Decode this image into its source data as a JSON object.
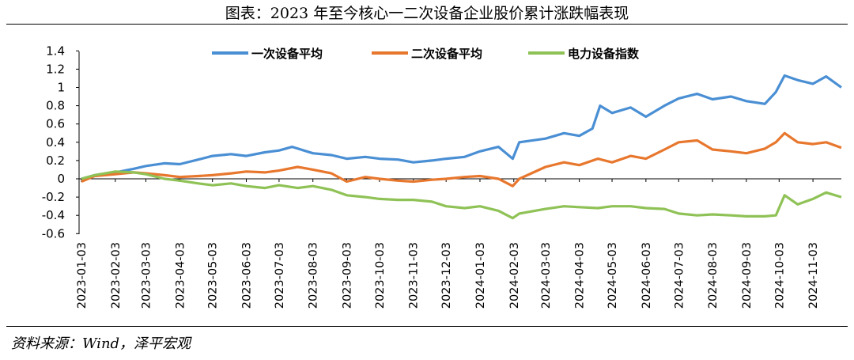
{
  "title": "图表：2023 年至今核心一二次设备企业股价累计涨跌幅表现",
  "source": "资料来源：Wind，泽平宏观",
  "chart_data": {
    "type": "line",
    "title": "图表：2023 年至今核心一二次设备企业股价累计涨跌幅表现",
    "xlabel": "",
    "ylabel": "",
    "ylim": [
      -0.6,
      1.4
    ],
    "yticks": [
      "1.4",
      "1.2",
      "1",
      "0.8",
      "0.6",
      "0.4",
      "0.2",
      "0",
      "-0.2",
      "-0.4",
      "-0.6"
    ],
    "x_range": [
      "2023-01-03",
      "2024-11-29"
    ],
    "xticks": [
      "2023-01-03",
      "2023-02-03",
      "2023-03-03",
      "2023-04-03",
      "2023-05-03",
      "2023-06-03",
      "2023-07-03",
      "2023-08-03",
      "2023-09-03",
      "2023-10-03",
      "2023-11-03",
      "2023-12-03",
      "2024-01-03",
      "2024-02-03",
      "2024-03-03",
      "2024-04-03",
      "2024-05-03",
      "2024-06-03",
      "2024-07-03",
      "2024-08-03",
      "2024-09-03",
      "2024-10-03",
      "2024-11-03"
    ],
    "legend_position": "top",
    "series": [
      {
        "name": "一次设备平均",
        "color": "#4A8FD4",
        "points": [
          [
            "2023-01-03",
            0.0
          ],
          [
            "2023-01-15",
            0.04
          ],
          [
            "2023-02-03",
            0.07
          ],
          [
            "2023-02-20",
            0.11
          ],
          [
            "2023-03-03",
            0.14
          ],
          [
            "2023-03-20",
            0.17
          ],
          [
            "2023-04-03",
            0.16
          ],
          [
            "2023-04-20",
            0.21
          ],
          [
            "2023-05-03",
            0.25
          ],
          [
            "2023-05-20",
            0.27
          ],
          [
            "2023-06-03",
            0.25
          ],
          [
            "2023-06-20",
            0.29
          ],
          [
            "2023-07-03",
            0.31
          ],
          [
            "2023-07-15",
            0.35
          ],
          [
            "2023-08-03",
            0.28
          ],
          [
            "2023-08-20",
            0.26
          ],
          [
            "2023-09-03",
            0.22
          ],
          [
            "2023-09-20",
            0.24
          ],
          [
            "2023-10-03",
            0.22
          ],
          [
            "2023-10-20",
            0.21
          ],
          [
            "2023-11-03",
            0.18
          ],
          [
            "2023-11-20",
            0.2
          ],
          [
            "2023-12-03",
            0.22
          ],
          [
            "2023-12-20",
            0.24
          ],
          [
            "2024-01-03",
            0.3
          ],
          [
            "2024-01-20",
            0.35
          ],
          [
            "2024-02-02",
            0.22
          ],
          [
            "2024-02-08",
            0.4
          ],
          [
            "2024-03-03",
            0.44
          ],
          [
            "2024-03-20",
            0.5
          ],
          [
            "2024-04-03",
            0.47
          ],
          [
            "2024-04-15",
            0.55
          ],
          [
            "2024-04-22",
            0.8
          ],
          [
            "2024-05-03",
            0.72
          ],
          [
            "2024-05-20",
            0.78
          ],
          [
            "2024-06-03",
            0.68
          ],
          [
            "2024-06-20",
            0.8
          ],
          [
            "2024-07-03",
            0.88
          ],
          [
            "2024-07-20",
            0.93
          ],
          [
            "2024-08-03",
            0.87
          ],
          [
            "2024-08-20",
            0.9
          ],
          [
            "2024-09-03",
            0.85
          ],
          [
            "2024-09-20",
            0.82
          ],
          [
            "2024-09-30",
            0.95
          ],
          [
            "2024-10-08",
            1.13
          ],
          [
            "2024-10-20",
            1.08
          ],
          [
            "2024-11-03",
            1.04
          ],
          [
            "2024-11-15",
            1.12
          ],
          [
            "2024-11-29",
            1.0
          ]
        ]
      },
      {
        "name": "二次设备平均",
        "color": "#E8772E",
        "points": [
          [
            "2023-01-03",
            -0.03
          ],
          [
            "2023-01-15",
            0.03
          ],
          [
            "2023-02-03",
            0.05
          ],
          [
            "2023-02-20",
            0.07
          ],
          [
            "2023-03-03",
            0.06
          ],
          [
            "2023-03-20",
            0.04
          ],
          [
            "2023-04-03",
            0.02
          ],
          [
            "2023-04-20",
            0.03
          ],
          [
            "2023-05-03",
            0.04
          ],
          [
            "2023-05-20",
            0.06
          ],
          [
            "2023-06-03",
            0.08
          ],
          [
            "2023-06-20",
            0.07
          ],
          [
            "2023-07-03",
            0.09
          ],
          [
            "2023-07-20",
            0.13
          ],
          [
            "2023-08-03",
            0.1
          ],
          [
            "2023-08-20",
            0.06
          ],
          [
            "2023-09-03",
            -0.03
          ],
          [
            "2023-09-20",
            0.02
          ],
          [
            "2023-10-03",
            0.0
          ],
          [
            "2023-10-20",
            -0.02
          ],
          [
            "2023-11-03",
            -0.03
          ],
          [
            "2023-11-20",
            -0.01
          ],
          [
            "2023-12-03",
            0.0
          ],
          [
            "2023-12-20",
            0.02
          ],
          [
            "2024-01-03",
            0.03
          ],
          [
            "2024-01-20",
            0.0
          ],
          [
            "2024-02-02",
            -0.08
          ],
          [
            "2024-02-08",
            0.0
          ],
          [
            "2024-03-03",
            0.13
          ],
          [
            "2024-03-20",
            0.18
          ],
          [
            "2024-04-03",
            0.15
          ],
          [
            "2024-04-20",
            0.22
          ],
          [
            "2024-05-03",
            0.18
          ],
          [
            "2024-05-20",
            0.25
          ],
          [
            "2024-06-03",
            0.22
          ],
          [
            "2024-06-20",
            0.32
          ],
          [
            "2024-07-03",
            0.4
          ],
          [
            "2024-07-20",
            0.42
          ],
          [
            "2024-08-03",
            0.32
          ],
          [
            "2024-08-20",
            0.3
          ],
          [
            "2024-09-03",
            0.28
          ],
          [
            "2024-09-20",
            0.33
          ],
          [
            "2024-09-30",
            0.4
          ],
          [
            "2024-10-08",
            0.5
          ],
          [
            "2024-10-20",
            0.4
          ],
          [
            "2024-11-03",
            0.38
          ],
          [
            "2024-11-15",
            0.4
          ],
          [
            "2024-11-29",
            0.34
          ]
        ]
      },
      {
        "name": "电力设备指数",
        "color": "#8FC256",
        "points": [
          [
            "2023-01-03",
            0.0
          ],
          [
            "2023-01-15",
            0.04
          ],
          [
            "2023-02-03",
            0.08
          ],
          [
            "2023-02-20",
            0.07
          ],
          [
            "2023-03-03",
            0.05
          ],
          [
            "2023-03-20",
            0.0
          ],
          [
            "2023-04-03",
            -0.02
          ],
          [
            "2023-04-20",
            -0.05
          ],
          [
            "2023-05-03",
            -0.07
          ],
          [
            "2023-05-20",
            -0.05
          ],
          [
            "2023-06-03",
            -0.08
          ],
          [
            "2023-06-20",
            -0.1
          ],
          [
            "2023-07-03",
            -0.07
          ],
          [
            "2023-07-20",
            -0.1
          ],
          [
            "2023-08-03",
            -0.08
          ],
          [
            "2023-08-20",
            -0.12
          ],
          [
            "2023-09-03",
            -0.18
          ],
          [
            "2023-09-20",
            -0.2
          ],
          [
            "2023-10-03",
            -0.22
          ],
          [
            "2023-10-20",
            -0.23
          ],
          [
            "2023-11-03",
            -0.23
          ],
          [
            "2023-11-20",
            -0.25
          ],
          [
            "2023-12-03",
            -0.3
          ],
          [
            "2023-12-20",
            -0.32
          ],
          [
            "2024-01-03",
            -0.3
          ],
          [
            "2024-01-20",
            -0.35
          ],
          [
            "2024-02-02",
            -0.43
          ],
          [
            "2024-02-08",
            -0.38
          ],
          [
            "2024-03-03",
            -0.33
          ],
          [
            "2024-03-20",
            -0.3
          ],
          [
            "2024-04-03",
            -0.31
          ],
          [
            "2024-04-20",
            -0.32
          ],
          [
            "2024-05-03",
            -0.3
          ],
          [
            "2024-05-20",
            -0.3
          ],
          [
            "2024-06-03",
            -0.32
          ],
          [
            "2024-06-20",
            -0.33
          ],
          [
            "2024-07-03",
            -0.38
          ],
          [
            "2024-07-20",
            -0.4
          ],
          [
            "2024-08-03",
            -0.39
          ],
          [
            "2024-08-20",
            -0.4
          ],
          [
            "2024-09-03",
            -0.41
          ],
          [
            "2024-09-20",
            -0.41
          ],
          [
            "2024-09-30",
            -0.4
          ],
          [
            "2024-10-08",
            -0.18
          ],
          [
            "2024-10-20",
            -0.28
          ],
          [
            "2024-11-03",
            -0.22
          ],
          [
            "2024-11-15",
            -0.15
          ],
          [
            "2024-11-29",
            -0.2
          ]
        ]
      }
    ]
  }
}
